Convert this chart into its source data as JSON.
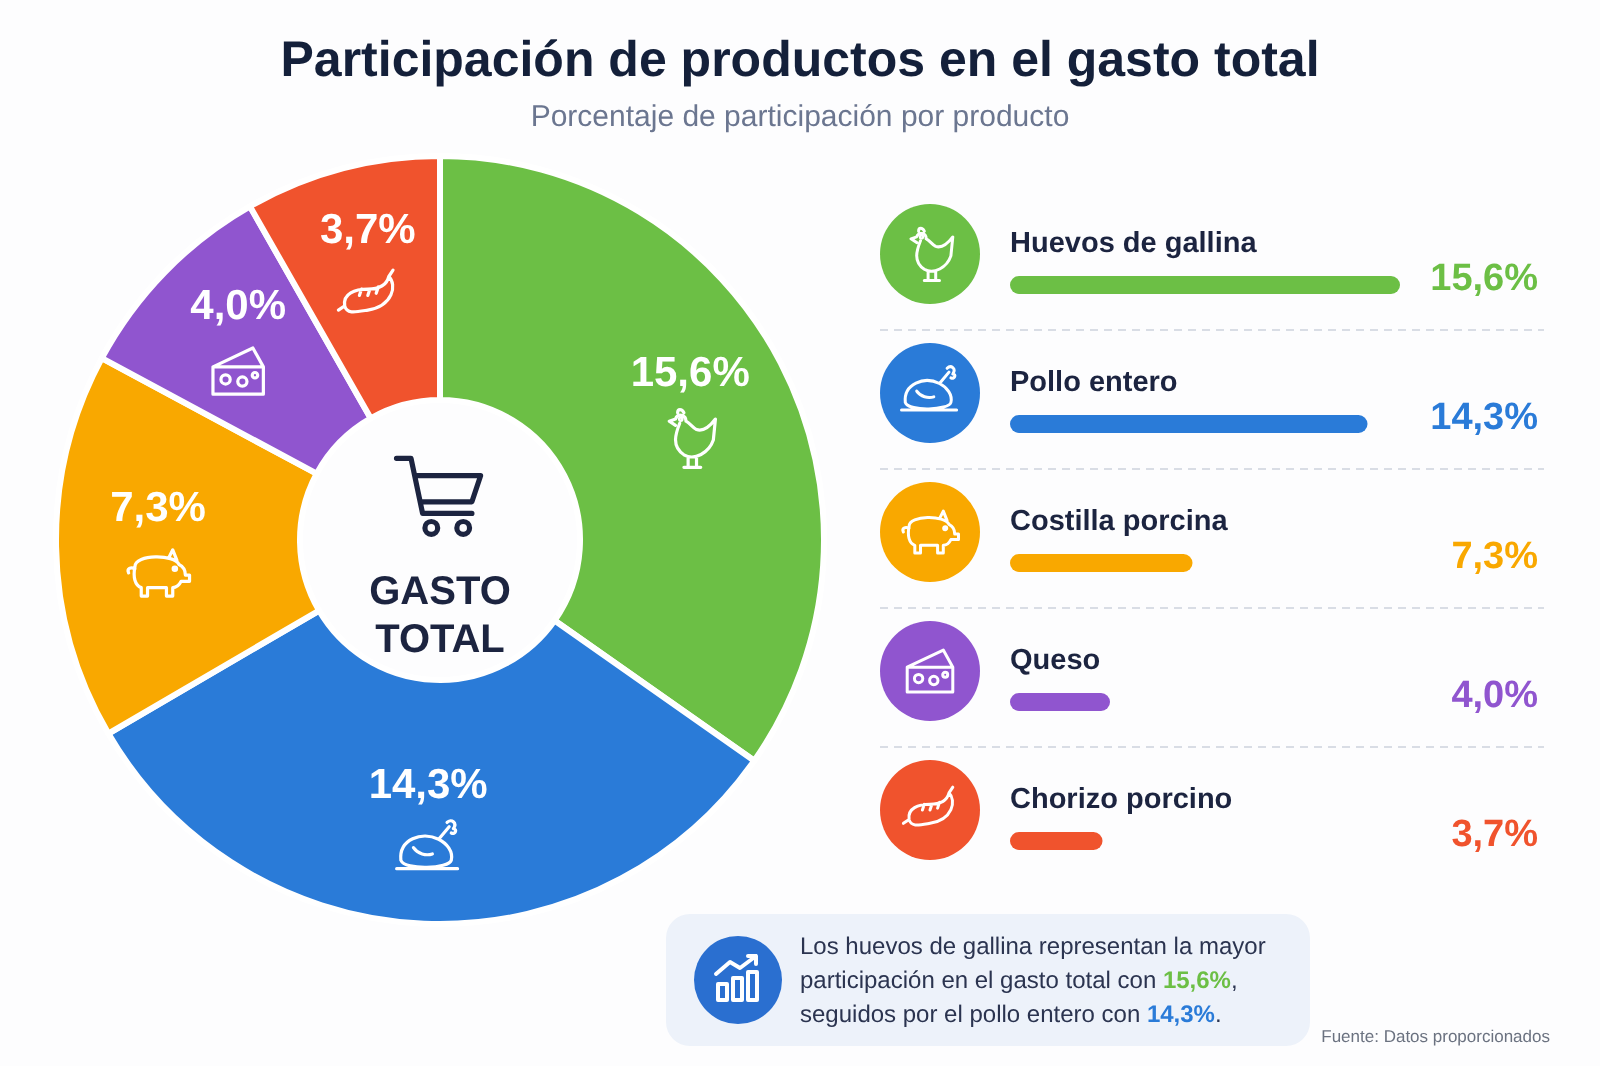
{
  "chart_data": [
    {
      "type": "donut",
      "title": "Participación de productos en el gasto total",
      "subtitle": "Porcentaje de participación por producto",
      "categories": [
        null,
        null,
        null,
        null,
        null
      ],
      "values": [
        15.6,
        14.3,
        7.3,
        4.0,
        3.7
      ],
      "colors": [
        "#6cbf45",
        "#2a7bd8",
        "#f9a800",
        "#9055cf",
        "#f0532d"
      ],
      "value_labels": [
        "15,6%",
        "14,3%",
        "7,3%",
        "4,0%",
        "3,7%"
      ],
      "annotations": [
        "GASTO TOTAL"
      ]
    },
    {
      "type": "bar",
      "orientation": "horizontal",
      "categories": [
        "Huevos de gallina",
        "Pollo entero",
        "Costilla porcina",
        "Queso",
        "Chorizo porcino"
      ],
      "values": [
        15.6,
        14.3,
        7.3,
        4.0,
        3.7
      ],
      "colors": [
        "#6cbf45",
        "#2a7bd8",
        "#f9a800",
        "#9055cf",
        "#f0532d"
      ],
      "value_labels": [
        "15,6%",
        "14,3%",
        "7,3%",
        "4,0%",
        "3,7%"
      ],
      "annotations": [
        "Los huevos de gallina representan la mayor participación en el gasto total con 15,6%, seguidos por el pollo entero con 14,3%.",
        "Fuente: Datos proporcionados"
      ]
    }
  ]
}
